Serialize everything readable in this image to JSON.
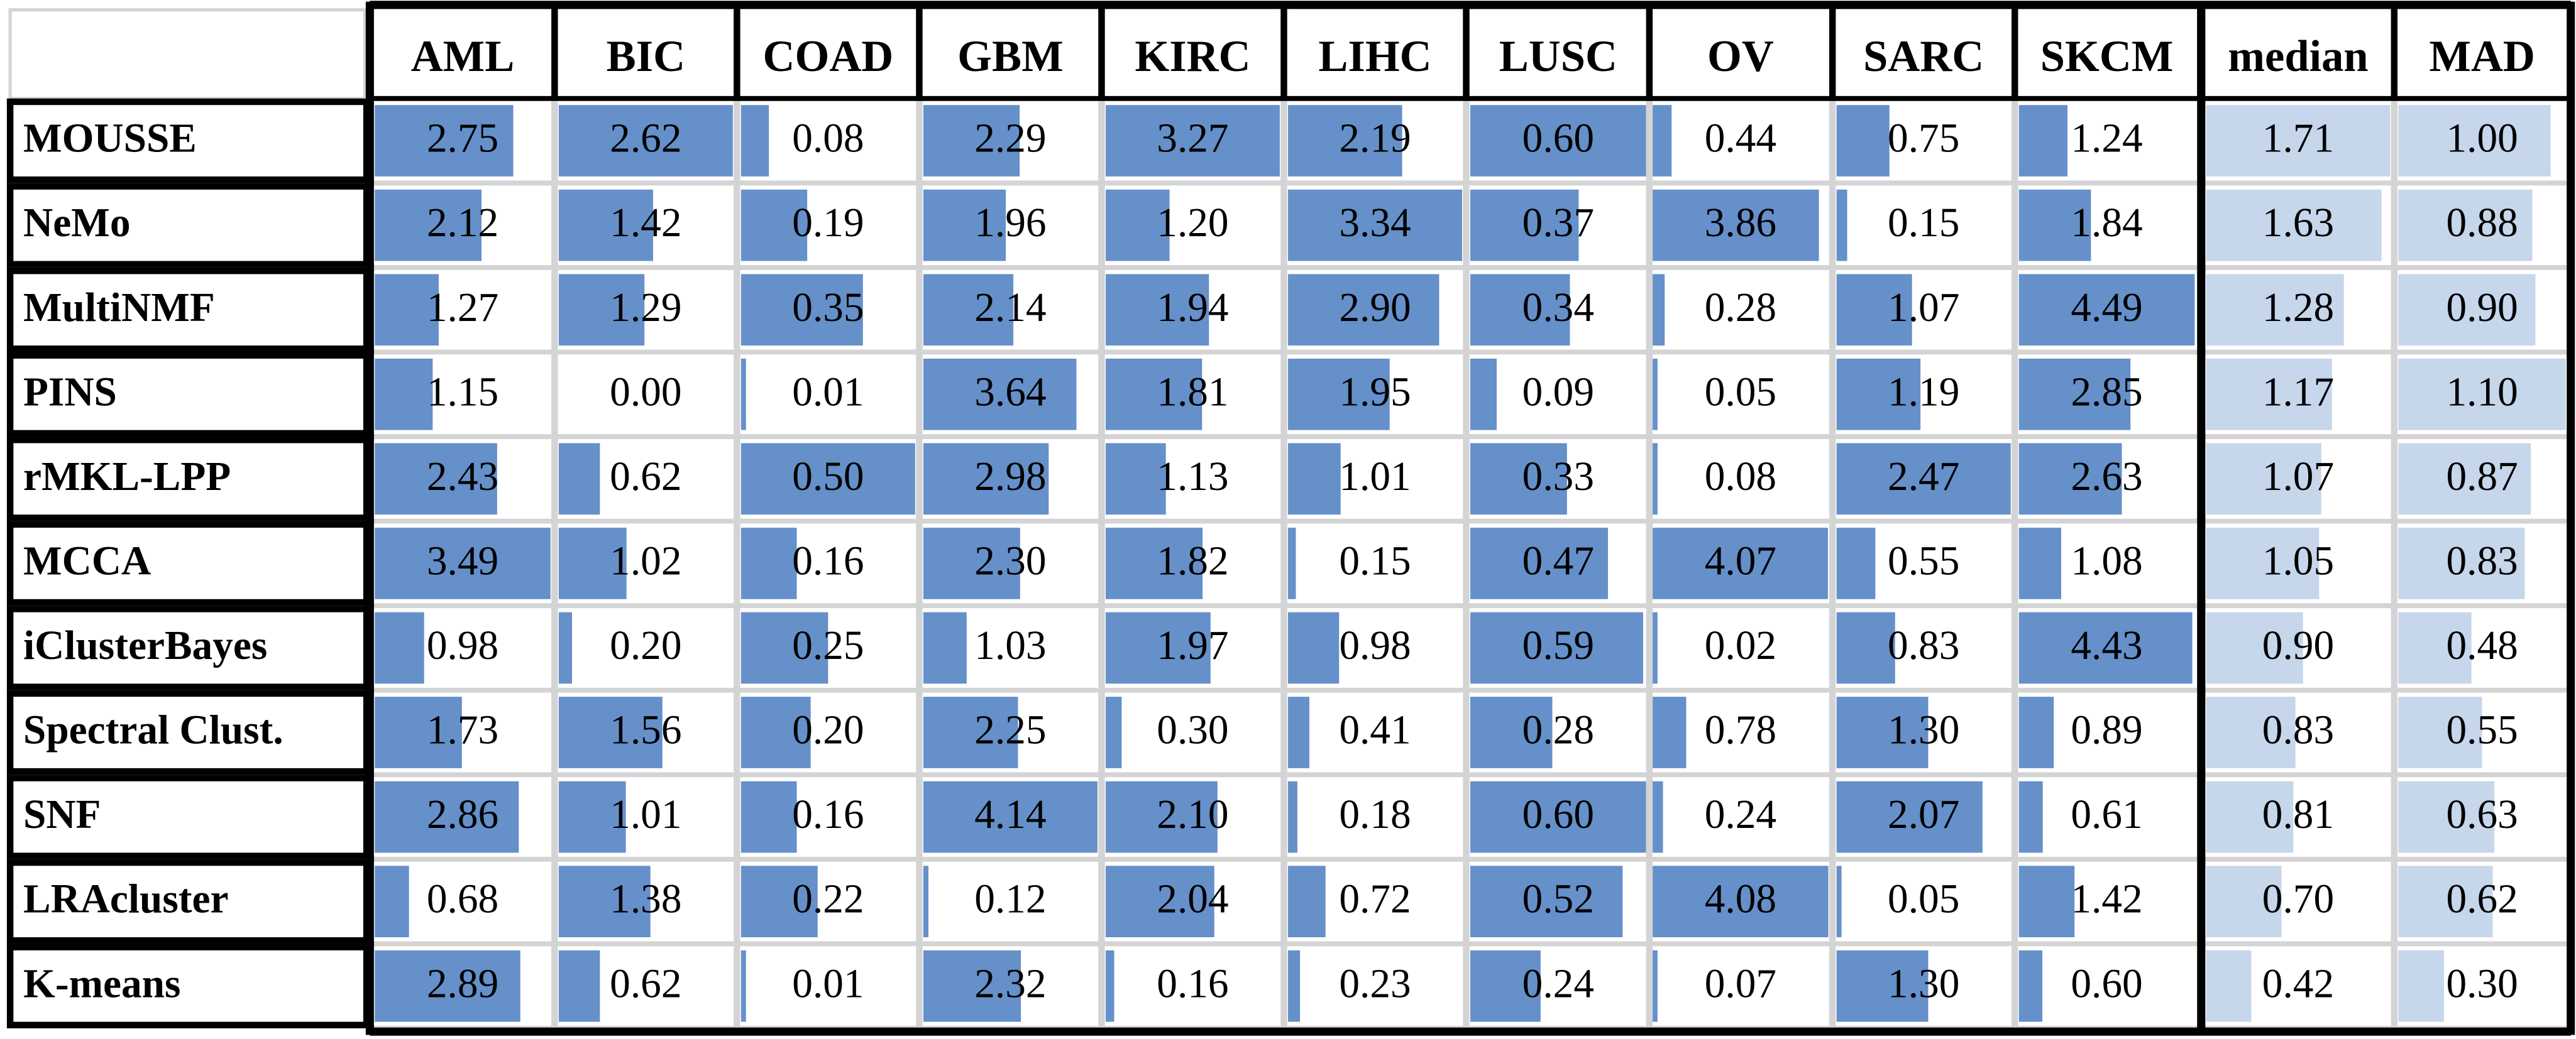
{
  "table": {
    "columns": [
      "AML",
      "BIC",
      "COAD",
      "GBM",
      "KIRC",
      "LIHC",
      "LUSC",
      "OV",
      "SARC",
      "SKCM",
      "median",
      "MAD"
    ],
    "rows": [
      {
        "label": "MOUSSE",
        "cells": [
          "2.75",
          "2.62",
          "0.08",
          "2.29",
          "3.27",
          "2.19",
          "0.60",
          "0.44",
          "0.75",
          "1.24",
          "1.71",
          "1.00"
        ]
      },
      {
        "label": "NeMo",
        "cells": [
          "2.12",
          "1.42",
          "0.19",
          "1.96",
          "1.20",
          "3.34",
          "0.37",
          "3.86",
          "0.15",
          "1.84",
          "1.63",
          "0.88"
        ]
      },
      {
        "label": "MultiNMF",
        "cells": [
          "1.27",
          "1.29",
          "0.35",
          "2.14",
          "1.94",
          "2.90",
          "0.34",
          "0.28",
          "1.07",
          "4.49",
          "1.28",
          "0.90"
        ]
      },
      {
        "label": "PINS",
        "cells": [
          "1.15",
          "0.00",
          "0.01",
          "3.64",
          "1.81",
          "1.95",
          "0.09",
          "0.05",
          "1.19",
          "2.85",
          "1.17",
          "1.10"
        ]
      },
      {
        "label": "rMKL-LPP",
        "cells": [
          "2.43",
          "0.62",
          "0.50",
          "2.98",
          "1.13",
          "1.01",
          "0.33",
          "0.08",
          "2.47",
          "2.63",
          "1.07",
          "0.87"
        ]
      },
      {
        "label": "MCCA",
        "cells": [
          "3.49",
          "1.02",
          "0.16",
          "2.30",
          "1.82",
          "0.15",
          "0.47",
          "4.07",
          "0.55",
          "1.08",
          "1.05",
          "0.83"
        ]
      },
      {
        "label": "iClusterBayes",
        "cells": [
          "0.98",
          "0.20",
          "0.25",
          "1.03",
          "1.97",
          "0.98",
          "0.59",
          "0.02",
          "0.83",
          "4.43",
          "0.90",
          "0.48"
        ]
      },
      {
        "label": "Spectral Clust.",
        "cells": [
          "1.73",
          "1.56",
          "0.20",
          "2.25",
          "0.30",
          "0.41",
          "0.28",
          "0.78",
          "1.30",
          "0.89",
          "0.83",
          "0.55"
        ]
      },
      {
        "label": "SNF",
        "cells": [
          "2.86",
          "1.01",
          "0.16",
          "4.14",
          "2.10",
          "0.18",
          "0.60",
          "0.24",
          "2.07",
          "0.61",
          "0.81",
          "0.63"
        ]
      },
      {
        "label": "LRAcluster",
        "cells": [
          "0.68",
          "1.38",
          "0.22",
          "0.12",
          "2.04",
          "0.72",
          "0.52",
          "4.08",
          "0.05",
          "1.42",
          "0.70",
          "0.62"
        ]
      },
      {
        "label": "K-means",
        "cells": [
          "2.89",
          "0.62",
          "0.01",
          "2.32",
          "0.16",
          "0.23",
          "0.24",
          "0.07",
          "1.30",
          "0.60",
          "0.42",
          "0.30"
        ]
      }
    ]
  }
}
